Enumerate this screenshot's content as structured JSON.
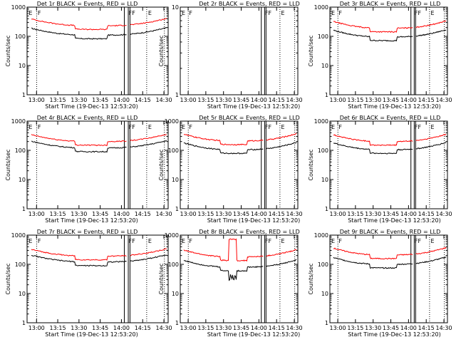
{
  "figure": {
    "subtitle": "Start Time (19-Dec-13 12:53:20)",
    "ylabel": "Counts/sec",
    "colors": {
      "events": "#000000",
      "lld": "#ff0000",
      "axes": "#000000",
      "background": "#ffffff"
    }
  },
  "chart_data": [
    {
      "type": "line",
      "title": "Det 1r BLACK = Events, RED = LLD",
      "xlabel": "Start Time (19-Dec-13 12:53:20)",
      "ylabel": "Counts/sec",
      "y_scale": "log",
      "ylim": [
        1,
        1000
      ],
      "y_ticks": [
        "1",
        "10",
        "100",
        "1000"
      ],
      "xlim": [
        "12:53:20",
        "14:33:00"
      ],
      "x_ticks": [
        "13:00",
        "13:15",
        "13:30",
        "13:45",
        "14:00",
        "14:15",
        "14:30"
      ],
      "marker_labels": [
        "E",
        "F",
        "FF",
        "E"
      ],
      "series": [
        {
          "name": "Events",
          "color": "#000000",
          "profile": "normal",
          "base": 110
        },
        {
          "name": "LLD",
          "color": "#ff0000",
          "profile": "normal",
          "base": 230
        }
      ]
    },
    {
      "type": "line",
      "title": "Det 2r BLACK = Events, RED = LLD",
      "xlabel": "Start Time (19-Dec-13 12:53:20)",
      "ylabel": "Counts/sec",
      "y_scale": "log",
      "ylim": [
        1,
        10
      ],
      "y_ticks": [
        "1",
        "10"
      ],
      "xlim": [
        "12:53:20",
        "14:33:00"
      ],
      "x_ticks": [
        "13:00",
        "13:15",
        "13:30",
        "13:45",
        "14:00",
        "14:15",
        "14:30"
      ],
      "marker_labels": [
        "E",
        "F",
        "FF",
        "E"
      ],
      "series": []
    },
    {
      "type": "line",
      "title": "Det 3r BLACK = Events, RED = LLD",
      "xlabel": "Start Time (19-Dec-13 12:53:20)",
      "ylabel": "Counts/sec",
      "y_scale": "log",
      "ylim": [
        1,
        1000
      ],
      "y_ticks": [
        "1",
        "10",
        "100",
        "1000"
      ],
      "xlim": [
        "12:53:20",
        "14:33:00"
      ],
      "x_ticks": [
        "13:00",
        "13:15",
        "13:30",
        "13:45",
        "14:00",
        "14:15",
        "14:30"
      ],
      "marker_labels": [
        "E",
        "F",
        "FF",
        "E"
      ],
      "series": [
        {
          "name": "Events",
          "color": "#000000",
          "profile": "normal",
          "base": 95
        },
        {
          "name": "LLD",
          "color": "#ff0000",
          "profile": "normal",
          "base": 190
        }
      ]
    },
    {
      "type": "line",
      "title": "Det 4r BLACK = Events, RED = LLD",
      "xlabel": "Start Time (19-Dec-13 12:53:20)",
      "ylabel": "Counts/sec",
      "y_scale": "log",
      "ylim": [
        1,
        1000
      ],
      "y_ticks": [
        "1",
        "10",
        "100",
        "1000"
      ],
      "xlim": [
        "12:53:20",
        "14:33:00"
      ],
      "x_ticks": [
        "13:00",
        "13:15",
        "13:30",
        "13:45",
        "14:00",
        "14:15",
        "14:30"
      ],
      "marker_labels": [
        "E",
        "F",
        "FF",
        "E"
      ],
      "series": [
        {
          "name": "Events",
          "color": "#000000",
          "profile": "normal",
          "base": 120
        },
        {
          "name": "LLD",
          "color": "#ff0000",
          "profile": "normal",
          "base": 200
        }
      ]
    },
    {
      "type": "line",
      "title": "Det 5r BLACK = Events, RED = LLD",
      "xlabel": "Start Time (19-Dec-13 12:53:20)",
      "ylabel": "Counts/sec",
      "y_scale": "log",
      "ylim": [
        1,
        1000
      ],
      "y_ticks": [
        "1",
        "10",
        "100",
        "1000"
      ],
      "xlim": [
        "12:53:20",
        "14:33:00"
      ],
      "x_ticks": [
        "13:00",
        "13:15",
        "13:30",
        "13:45",
        "14:00",
        "14:15",
        "14:30"
      ],
      "marker_labels": [
        "E",
        "F",
        "FF",
        "E"
      ],
      "series": [
        {
          "name": "Events",
          "color": "#000000",
          "profile": "normal",
          "base": 105
        },
        {
          "name": "LLD",
          "color": "#ff0000",
          "profile": "normal",
          "base": 210
        }
      ]
    },
    {
      "type": "line",
      "title": "Det 6r BLACK = Events, RED = LLD",
      "xlabel": "Start Time (19-Dec-13 12:53:20)",
      "ylabel": "Counts/sec",
      "y_scale": "log",
      "ylim": [
        1,
        1000
      ],
      "y_ticks": [
        "1",
        "10",
        "100",
        "1000"
      ],
      "xlim": [
        "12:53:20",
        "14:33:00"
      ],
      "x_ticks": [
        "13:00",
        "13:15",
        "13:30",
        "13:45",
        "14:00",
        "14:15",
        "14:30"
      ],
      "marker_labels": [
        "E",
        "F",
        "FF",
        "E"
      ],
      "series": [
        {
          "name": "Events",
          "color": "#000000",
          "profile": "normal",
          "base": 105
        },
        {
          "name": "LLD",
          "color": "#ff0000",
          "profile": "normal",
          "base": 200
        }
      ]
    },
    {
      "type": "line",
      "title": "Det 7r BLACK = Events, RED = LLD",
      "xlabel": "Start Time (19-Dec-13 12:53:20)",
      "ylabel": "Counts/sec",
      "y_scale": "log",
      "ylim": [
        1,
        1000
      ],
      "y_ticks": [
        "1",
        "10",
        "100",
        "1000"
      ],
      "xlim": [
        "12:53:20",
        "14:33:00"
      ],
      "x_ticks": [
        "13:00",
        "13:15",
        "13:30",
        "13:45",
        "14:00",
        "14:15",
        "14:30"
      ],
      "marker_labels": [
        "E",
        "F",
        "FF",
        "E"
      ],
      "series": [
        {
          "name": "Events",
          "color": "#000000",
          "profile": "normal",
          "base": 120
        },
        {
          "name": "LLD",
          "color": "#ff0000",
          "profile": "normal",
          "base": 190
        }
      ]
    },
    {
      "type": "line",
      "title": "Det 8r BLACK = Events, RED = LLD",
      "xlabel": "Start Time (19-Dec-13 12:53:20)",
      "ylabel": "Counts/sec",
      "y_scale": "log",
      "ylim": [
        1,
        1000
      ],
      "y_ticks": [
        "1",
        "10",
        "100",
        "1000"
      ],
      "xlim": [
        "12:53:20",
        "14:33:00"
      ],
      "x_ticks": [
        "13:00",
        "13:15",
        "13:30",
        "13:45",
        "14:00",
        "14:15",
        "14:30"
      ],
      "marker_labels": [
        "E",
        "F",
        "FF",
        "E"
      ],
      "series": [
        {
          "name": "Events",
          "color": "#000000",
          "profile": "dip",
          "base": 80
        },
        {
          "name": "LLD",
          "color": "#ff0000",
          "profile": "spike",
          "base": 180
        }
      ]
    },
    {
      "type": "line",
      "title": "Det 9r BLACK = Events, RED = LLD",
      "xlabel": "Start Time (19-Dec-13 12:53:20)",
      "ylabel": "Counts/sec",
      "y_scale": "log",
      "ylim": [
        1,
        1000
      ],
      "y_ticks": [
        "1",
        "10",
        "100",
        "1000"
      ],
      "xlim": [
        "12:53:20",
        "14:33:00"
      ],
      "x_ticks": [
        "13:00",
        "13:15",
        "13:30",
        "13:45",
        "14:00",
        "14:15",
        "14:30"
      ],
      "marker_labels": [
        "E",
        "F",
        "FF",
        "E"
      ],
      "series": [
        {
          "name": "Events",
          "color": "#000000",
          "profile": "normal",
          "base": 100
        },
        {
          "name": "LLD",
          "color": "#ff0000",
          "profile": "normal",
          "base": 210
        }
      ]
    }
  ]
}
